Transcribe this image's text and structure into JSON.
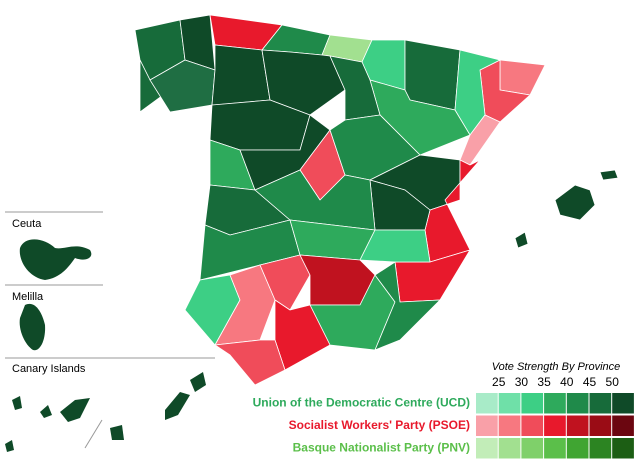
{
  "insets": [
    "Ceuta",
    "Melilla",
    "Canary Islands"
  ],
  "legend": {
    "title": "Vote Strength By Province",
    "scale": [
      25,
      30,
      35,
      40,
      45,
      50
    ],
    "rows": [
      {
        "name": "Union of the Democratic Centre (UCD)",
        "color": "#2eaa5c",
        "swatches": [
          "#a8ebc8",
          "#6fe0a8",
          "#3dcf85",
          "#2eaa5c",
          "#1f8a4a",
          "#176b3a",
          "#0f4a28"
        ]
      },
      {
        "name": "Socialist Workers' Party (PSOE)",
        "color": "#e8192c",
        "swatches": [
          "#f9a0a8",
          "#f77880",
          "#f04c5a",
          "#e8192c",
          "#c0121f",
          "#9a0c15",
          "#6b0610"
        ]
      },
      {
        "name": "Basque Nationalist Party (PNV)",
        "color": "#5bbf4a",
        "swatches": [
          "#c2edb8",
          "#a2e090",
          "#7fd06a",
          "#5bbf4a",
          "#40a532",
          "#2c8422",
          "#1c5e14"
        ]
      }
    ]
  }
}
